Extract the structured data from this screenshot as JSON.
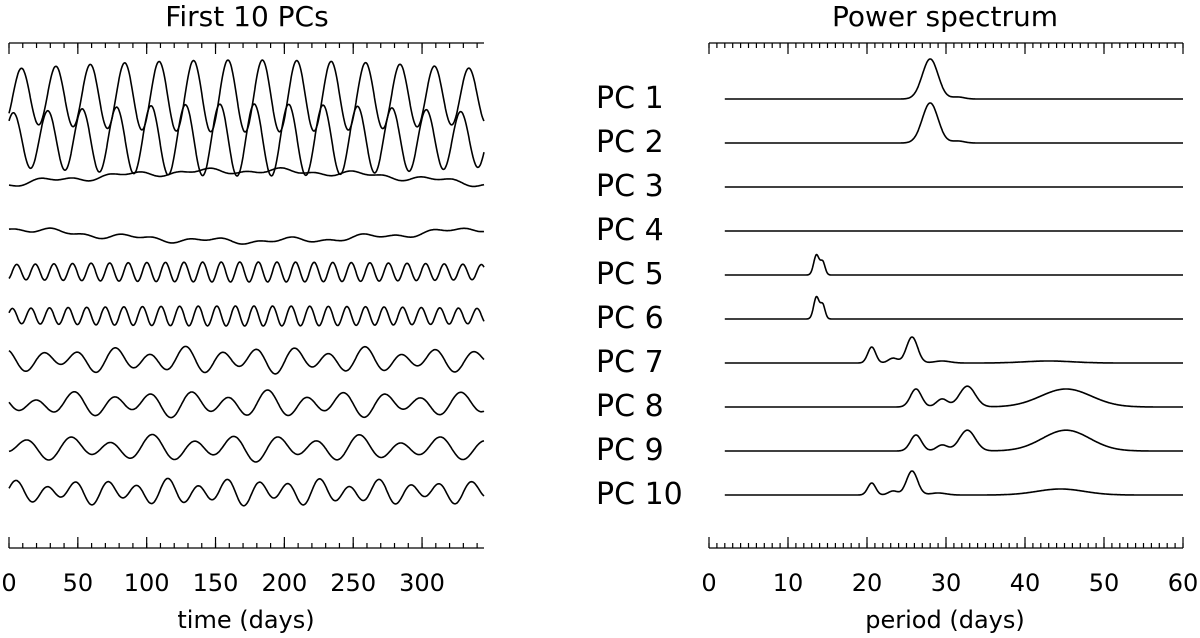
{
  "chart_data": [
    {
      "type": "line",
      "title": "First 10 PCs",
      "xlabel": "time (days)",
      "ylabel": "",
      "xlim": [
        0,
        345
      ],
      "xticks": [
        0,
        50,
        100,
        150,
        200,
        250,
        300
      ],
      "x_minor_step": 10,
      "grid": false,
      "series": [
        {
          "period": 25.0,
          "amp": 1.0,
          "trend": 0.0
        },
        {
          "period": 25.0,
          "amp": 1.0,
          "trend": 0.0
        },
        {
          "period": 0,
          "amp": 0,
          "trend": 1.0
        },
        {
          "period": 0,
          "amp": 0,
          "trend": 1.0
        },
        {
          "period": 13.5,
          "amp": 0.35,
          "trend": 0.0
        },
        {
          "period": 13.5,
          "amp": 0.35,
          "trend": 0.0
        },
        {
          "period": 26.0,
          "amp": 0.35,
          "trend": 0.0
        },
        {
          "period": 28.0,
          "amp": 0.35,
          "trend": 0.0
        },
        {
          "period": 30.0,
          "amp": 0.3,
          "trend": 0.0
        },
        {
          "period": 22.0,
          "amp": 0.3,
          "trend": 0.0
        }
      ]
    },
    {
      "type": "line",
      "title": "Power spectrum",
      "xlabel": "period (days)",
      "ylabel": "",
      "xlim": [
        0,
        60
      ],
      "xticks": [
        0,
        10,
        20,
        30,
        40,
        50,
        60
      ],
      "x_minor_step": 1,
      "x_start": 2,
      "grid": false,
      "series": [
        {
          "label": "PC 1",
          "peaks": [
            [
              28,
              1.0,
              1.0
            ],
            [
              31.5,
              0.05,
              0.8
            ]
          ]
        },
        {
          "label": "PC 2",
          "peaks": [
            [
              28,
              1.0,
              1.0
            ],
            [
              31.5,
              0.05,
              0.8
            ]
          ]
        },
        {
          "label": "PC 3",
          "peaks": []
        },
        {
          "label": "PC 4",
          "peaks": []
        },
        {
          "label": "PC 5",
          "peaks": [
            [
              13.6,
              0.5,
              0.35
            ],
            [
              14.4,
              0.32,
              0.3
            ]
          ]
        },
        {
          "label": "PC 6",
          "peaks": [
            [
              13.6,
              0.55,
              0.35
            ],
            [
              14.4,
              0.35,
              0.3
            ]
          ]
        },
        {
          "label": "PC 7",
          "peaks": [
            [
              20.6,
              0.4,
              0.5
            ],
            [
              23.3,
              0.12,
              0.6
            ],
            [
              25.7,
              0.65,
              0.7
            ],
            [
              29.5,
              0.05,
              1.0
            ],
            [
              43,
              0.05,
              3.0
            ]
          ]
        },
        {
          "label": "PC 8",
          "peaks": [
            [
              26.2,
              0.45,
              0.7
            ],
            [
              29.5,
              0.2,
              0.7
            ],
            [
              32.7,
              0.52,
              1.0
            ],
            [
              45.2,
              0.45,
              3.2
            ]
          ]
        },
        {
          "label": "PC 9",
          "peaks": [
            [
              26.2,
              0.4,
              0.7
            ],
            [
              29.5,
              0.15,
              0.7
            ],
            [
              32.7,
              0.52,
              1.0
            ],
            [
              45.2,
              0.52,
              3.0
            ]
          ]
        },
        {
          "label": "PC 10",
          "peaks": [
            [
              20.6,
              0.3,
              0.5
            ],
            [
              23.3,
              0.1,
              0.6
            ],
            [
              25.7,
              0.6,
              0.7
            ],
            [
              29,
              0.05,
              1.0
            ],
            [
              44.5,
              0.15,
              3.0
            ]
          ]
        }
      ]
    }
  ]
}
